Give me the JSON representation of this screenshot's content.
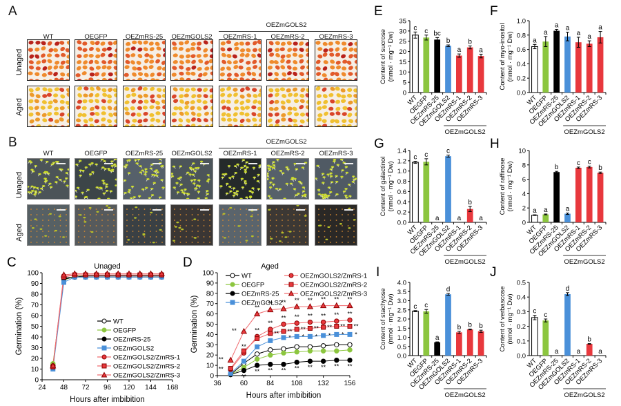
{
  "lines": [
    "WT",
    "OEGFP",
    "OEZmRS-25",
    "OEZmGOLS2",
    "OEZmRS-1",
    "OEZmRS-2",
    "OEZmRS-3"
  ],
  "colors": {
    "WT": "#ffffff",
    "OEGFP": "#8cc63f",
    "OEZmRS-25": "#000000",
    "OEZmGOLS2": "#4a90d9",
    "red": "#e8383d"
  },
  "panelA": {
    "letter": "A",
    "group_label": "OEZmGOLS2",
    "column_labels": [
      "WT",
      "OEGFP",
      "OEZmRS-25",
      "OEZmGOLS2",
      "OEZmRS-1",
      "OEZmRS-2",
      "OEZmRS-3"
    ],
    "row_labels": [
      "Unaged",
      "Aged"
    ]
  },
  "panelB": {
    "letter": "B",
    "group_label": "OEZmGOLS2",
    "column_labels": [
      "WT",
      "OEGFP",
      "OEZmRS-25",
      "OEZmGOLS2",
      "OEZmRS-1",
      "OEZmRS-2",
      "OEZmRS-3"
    ],
    "row_labels": [
      "Unaged",
      "Aged"
    ]
  },
  "chart_data": [
    {
      "id": "C",
      "type": "line",
      "title": "Unaged",
      "xlabel": "Hours after imbibition",
      "ylabel": "Germination (%)",
      "xlim": [
        24,
        168
      ],
      "ylim": [
        0,
        100
      ],
      "xticks": [
        24,
        48,
        72,
        96,
        120,
        144,
        168
      ],
      "yticks": [
        0,
        10,
        20,
        30,
        40,
        50,
        60,
        70,
        80,
        90,
        100
      ],
      "x": [
        36,
        48,
        60,
        72,
        84,
        96,
        108,
        120,
        132,
        144,
        156
      ],
      "legend_position": "center-right",
      "series": [
        {
          "name": "WT",
          "color": "#000000",
          "fill": "#ffffff",
          "marker": "circle",
          "values": [
            13,
            95,
            96,
            97,
            97,
            97,
            97,
            97,
            97,
            97,
            97
          ]
        },
        {
          "name": "OEGFP",
          "color": "#8cc63f",
          "fill": "#8cc63f",
          "marker": "circle",
          "values": [
            15,
            93,
            97,
            98,
            98,
            98,
            98,
            98,
            98,
            98,
            98
          ]
        },
        {
          "name": "OEZmRS-25",
          "color": "#000000",
          "fill": "#000000",
          "marker": "circle",
          "values": [
            12,
            94,
            96,
            96,
            96,
            96,
            96,
            96,
            96,
            96,
            96
          ]
        },
        {
          "name": "OEZmGOLS2",
          "color": "#4a90d9",
          "fill": "#4a90d9",
          "marker": "square",
          "values": [
            10,
            91,
            96,
            96,
            96,
            96,
            96,
            96,
            96,
            96,
            96
          ]
        },
        {
          "name": "OEZmGOLS2/ZmRS-1",
          "color": "#e8383d",
          "fill": "#e8383d",
          "marker": "circle",
          "values": [
            13,
            97,
            98,
            98,
            98,
            98,
            98,
            98,
            98,
            98,
            98
          ]
        },
        {
          "name": "OEZmGOLS2/ZmRS-2",
          "color": "#e8383d",
          "fill": "#e8383d",
          "marker": "square",
          "values": [
            12,
            96,
            98,
            98,
            98,
            98,
            98,
            98,
            98,
            98,
            98
          ]
        },
        {
          "name": "OEZmGOLS2/ZmRS-3",
          "color": "#e8383d",
          "fill": "#e8383d",
          "marker": "triangle",
          "values": [
            13,
            98,
            99,
            99,
            99,
            99,
            99,
            99,
            99,
            99,
            99
          ]
        }
      ]
    },
    {
      "id": "D",
      "type": "line",
      "title": "Aged",
      "xlabel": "Hours after imbibition",
      "ylabel": "Germination (%)",
      "xlim": [
        36,
        156
      ],
      "ylim": [
        0,
        100
      ],
      "xticks": [
        36,
        60,
        84,
        108,
        132,
        156
      ],
      "yticks": [
        0,
        10,
        20,
        30,
        40,
        50,
        60,
        70,
        80,
        90,
        100
      ],
      "x": [
        48,
        60,
        72,
        84,
        96,
        108,
        120,
        132,
        144,
        156
      ],
      "legend_position": "top",
      "series": [
        {
          "name": "WT",
          "color": "#000000",
          "fill": "#ffffff",
          "marker": "circle",
          "values": [
            1,
            12,
            21,
            25,
            26,
            28,
            28,
            29,
            30,
            30
          ]
        },
        {
          "name": "OEGFP",
          "color": "#8cc63f",
          "fill": "#8cc63f",
          "marker": "circle",
          "values": [
            1,
            8,
            16,
            20,
            22,
            23,
            24,
            24,
            24,
            25
          ]
        },
        {
          "name": "OEZmRS-25",
          "color": "#000000",
          "fill": "#000000",
          "marker": "circle",
          "values": [
            1,
            5,
            10,
            11,
            11,
            13,
            14,
            14,
            15,
            15
          ]
        },
        {
          "name": "OEZmGOLS2",
          "color": "#4a90d9",
          "fill": "#4a90d9",
          "marker": "square",
          "values": [
            2,
            14,
            28,
            34,
            37,
            38,
            38,
            39,
            40,
            40
          ]
        },
        {
          "name": "OEZmGOLS2/ZmRS-1",
          "color": "#e8383d",
          "fill": "#e8383d",
          "marker": "circle",
          "values": [
            6,
            22,
            38,
            45,
            50,
            51,
            52,
            52,
            53,
            54
          ]
        },
        {
          "name": "OEZmGOLS2/ZmRS-2",
          "color": "#e8383d",
          "fill": "#e8383d",
          "marker": "square",
          "values": [
            7,
            24,
            36,
            41,
            43,
            45,
            46,
            47,
            48,
            48
          ]
        },
        {
          "name": "OEZmGOLS2/ZmRS-3",
          "color": "#e8383d",
          "fill": "#e8383d",
          "marker": "triangle",
          "values": [
            15,
            43,
            60,
            64,
            65,
            67,
            67,
            68,
            68,
            68
          ]
        }
      ],
      "annotations": "** / * significance marks above and below series"
    },
    {
      "id": "E",
      "type": "bar",
      "ylabel": "Content of sucrose",
      "yunit": "(nmol · mg⁻¹ Dw)",
      "ylim": [
        0,
        35
      ],
      "yticks": [
        0,
        5,
        10,
        15,
        20,
        25,
        30,
        35
      ],
      "categories": [
        "WT",
        "OEGFP",
        "OEZmRS-25",
        "OEZmGOLS2",
        "OEZmRS-1",
        "OEZmRS-2",
        "OEZmRS-3"
      ],
      "values": [
        28,
        26.8,
        25.8,
        22.8,
        18,
        22,
        17.8
      ],
      "errors": [
        1.5,
        1.2,
        1.0,
        0.4,
        0.8,
        0.7,
        0.9
      ],
      "letters": [
        "c",
        "c",
        "bc",
        "b",
        "a",
        "b",
        "a"
      ],
      "group_label": "OEZmGOLS2"
    },
    {
      "id": "F",
      "type": "bar",
      "ylabel": "Content of myo-inositol",
      "yunit": "(nmol · mg⁻¹ Dw)",
      "ylim": [
        0,
        1.0
      ],
      "yticks": [
        0.0,
        0.2,
        0.4,
        0.6,
        0.8,
        1.0
      ],
      "categories": [
        "WT",
        "OEGFP",
        "OEZmRS-25",
        "OEZmGOLS2",
        "OEZmRS-1",
        "OEZmRS-2",
        "OEZmRS-3"
      ],
      "values": [
        0.64,
        0.71,
        0.86,
        0.78,
        0.7,
        0.68,
        0.77
      ],
      "errors": [
        0.03,
        0.07,
        0.02,
        0.06,
        0.07,
        0.04,
        0.08
      ],
      "letters": [
        "a",
        "a",
        "a",
        "a",
        "a",
        "a",
        "a"
      ],
      "group_label": "OEZmGOLS2"
    },
    {
      "id": "G",
      "type": "bar",
      "ylabel": "Content of galactinol",
      "yunit": "(nmol · mg⁻¹ Dw)",
      "ylim": [
        0,
        1.4
      ],
      "yticks": [
        0,
        0.2,
        0.4,
        0.6,
        0.8,
        1.0,
        1.2,
        1.4
      ],
      "categories": [
        "WT",
        "OEGFP",
        "OEZmRS-25",
        "OEZmGOLS2",
        "OEZmRS-1",
        "OEZmRS-2",
        "OEZmRS-3"
      ],
      "values": [
        1.17,
        1.18,
        0,
        1.29,
        0,
        0.26,
        0
      ],
      "errors": [
        0.02,
        0.06,
        0,
        0.02,
        0,
        0.05,
        0
      ],
      "letters": [
        "c",
        "c",
        "a",
        "c",
        "a",
        "b",
        "a"
      ],
      "group_label": "OEZmGOLS2"
    },
    {
      "id": "H",
      "type": "bar",
      "ylabel": "Content of raffinose",
      "yunit": "(nmol · mg⁻¹ Dw)",
      "ylim": [
        0,
        10
      ],
      "yticks": [
        0,
        2,
        4,
        6,
        8,
        10
      ],
      "categories": [
        "WT",
        "OEGFP",
        "OEZmRS-25",
        "OEZmGOLS2",
        "OEZmRS-1",
        "OEZmRS-2",
        "OEZmRS-3"
      ],
      "values": [
        1.0,
        1.1,
        7.0,
        1.2,
        7.6,
        7.7,
        6.9
      ],
      "errors": [
        0.05,
        0.06,
        0.1,
        0.1,
        0.1,
        0.12,
        0.1
      ],
      "letters": [
        "a",
        "a",
        "b",
        "a",
        "c",
        "c",
        "b"
      ],
      "group_label": "OEZmGOLS2"
    },
    {
      "id": "I",
      "type": "bar",
      "ylabel": "Content of stachyose",
      "yunit": "(nmol · mg⁻¹ Dw)",
      "ylim": [
        0,
        4.0
      ],
      "yticks": [
        0.0,
        0.5,
        1.0,
        1.5,
        2.0,
        2.5,
        3.0,
        3.5,
        4.0
      ],
      "categories": [
        "WT",
        "OEGFP",
        "OEZmRS-25",
        "OEZmGOLS2",
        "OEZmRS-1",
        "OEZmRS-2",
        "OEZmRS-3"
      ],
      "values": [
        2.43,
        2.42,
        0.73,
        3.35,
        1.27,
        1.43,
        1.33
      ],
      "errors": [
        0.03,
        0.1,
        0.02,
        0.05,
        0.06,
        0.02,
        0.06
      ],
      "letters": [
        "c",
        "c",
        "a",
        "d",
        "b",
        "b",
        "b"
      ],
      "group_label": "OEZmGOLS2"
    },
    {
      "id": "J",
      "type": "bar",
      "ylabel": "Content of verbascose",
      "yunit": "(nmol · mg⁻¹ Dw)",
      "ylim": [
        0,
        0.5
      ],
      "yticks": [
        0.0,
        0.1,
        0.2,
        0.3,
        0.4,
        0.5
      ],
      "categories": [
        "WT",
        "OEGFP",
        "OEZmRS-25",
        "OEZmGOLS2",
        "OEZmRS-1",
        "OEZmRS-2",
        "OEZmRS-3"
      ],
      "values": [
        0.26,
        0.24,
        0,
        0.42,
        0,
        0.08,
        0
      ],
      "errors": [
        0.015,
        0.01,
        0,
        0.01,
        0,
        0.002,
        0
      ],
      "letters": [
        "c",
        "c",
        "a",
        "d",
        "a",
        "b",
        "a"
      ],
      "group_label": "OEZmGOLS2"
    }
  ]
}
